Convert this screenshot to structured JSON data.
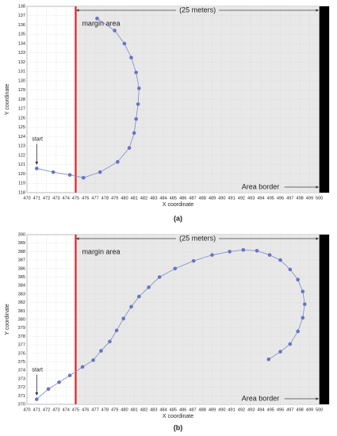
{
  "chart_data": [
    {
      "type": "line",
      "caption": "(a)",
      "xlabel": "X coordinate",
      "ylabel": "Y coordinate",
      "start_label": "start",
      "margin_label": "margin area",
      "width_label": "(25 meters)",
      "border_label": "Area border",
      "margin_start": 475,
      "border_start": 500,
      "grid": true,
      "color": "#6774c4",
      "line_color": "#7d88cf",
      "margin_color": "#e02222",
      "border_color": "#000000",
      "area_color": "#e8e8e8",
      "xlim": [
        470,
        501
      ],
      "ylim": [
        118,
        138
      ],
      "xticks": [
        470,
        471,
        472,
        473,
        474,
        475,
        476,
        477,
        478,
        479,
        480,
        481,
        482,
        483,
        484,
        485,
        486,
        487,
        488,
        489,
        490,
        491,
        492,
        493,
        494,
        495,
        496,
        497,
        498,
        499,
        500
      ],
      "yticks": [
        118,
        119,
        120,
        121,
        122,
        123,
        124,
        125,
        126,
        127,
        128,
        129,
        130,
        131,
        132,
        133,
        134,
        135,
        136,
        137,
        138
      ],
      "x": [
        471,
        472.7,
        474.4,
        475.8,
        477.5,
        479.3,
        480.5,
        481,
        481.2,
        481.4,
        481.5,
        481.2,
        480.7,
        480,
        479,
        477.2
      ],
      "values": [
        120.6,
        120.2,
        119.9,
        119.6,
        120.2,
        121.3,
        122.8,
        124.4,
        125.9,
        127.5,
        129.2,
        130.9,
        132.5,
        134,
        135.4,
        136.7
      ]
    },
    {
      "type": "line",
      "caption": "(b)",
      "xlabel": "X coordinate",
      "ylabel": "Y coordinate",
      "start_label": "start",
      "margin_label": "margin area",
      "width_label": "(25 meters)",
      "border_label": "Area border",
      "margin_start": 475,
      "border_start": 500,
      "grid": true,
      "color": "#6774c4",
      "line_color": "#7d88cf",
      "margin_color": "#e02222",
      "border_color": "#000000",
      "area_color": "#e8e8e8",
      "xlim": [
        470,
        501
      ],
      "ylim": [
        370,
        390
      ],
      "xticks": [
        470,
        471,
        472,
        473,
        474,
        475,
        476,
        477,
        478,
        479,
        480,
        481,
        482,
        483,
        484,
        485,
        486,
        487,
        488,
        489,
        490,
        491,
        492,
        493,
        494,
        495,
        496,
        497,
        498,
        499,
        500
      ],
      "yticks": [
        370,
        371,
        372,
        373,
        374,
        375,
        376,
        377,
        378,
        379,
        380,
        381,
        382,
        383,
        384,
        385,
        386,
        387,
        388,
        389,
        390
      ],
      "x": [
        471,
        472.2,
        473.3,
        474.4,
        475.7,
        476.8,
        477.6,
        478.5,
        479.2,
        479.9,
        480.7,
        481.5,
        482.5,
        483.6,
        485.2,
        487.1,
        489,
        490.8,
        492.2,
        493.6,
        494.9,
        496,
        497,
        497.8,
        498.3,
        498.5,
        498.3,
        497.8,
        497,
        496,
        494.8
      ],
      "values": [
        370.6,
        371.8,
        372.6,
        373.4,
        374.4,
        375.2,
        376.3,
        377.4,
        378.7,
        380.1,
        381.5,
        382.7,
        383.8,
        385,
        386,
        386.9,
        387.6,
        388,
        388.2,
        388.1,
        387.6,
        387,
        385.9,
        384.7,
        383.3,
        381.8,
        380.2,
        378.6,
        377.1,
        376.2,
        375.3
      ]
    }
  ]
}
